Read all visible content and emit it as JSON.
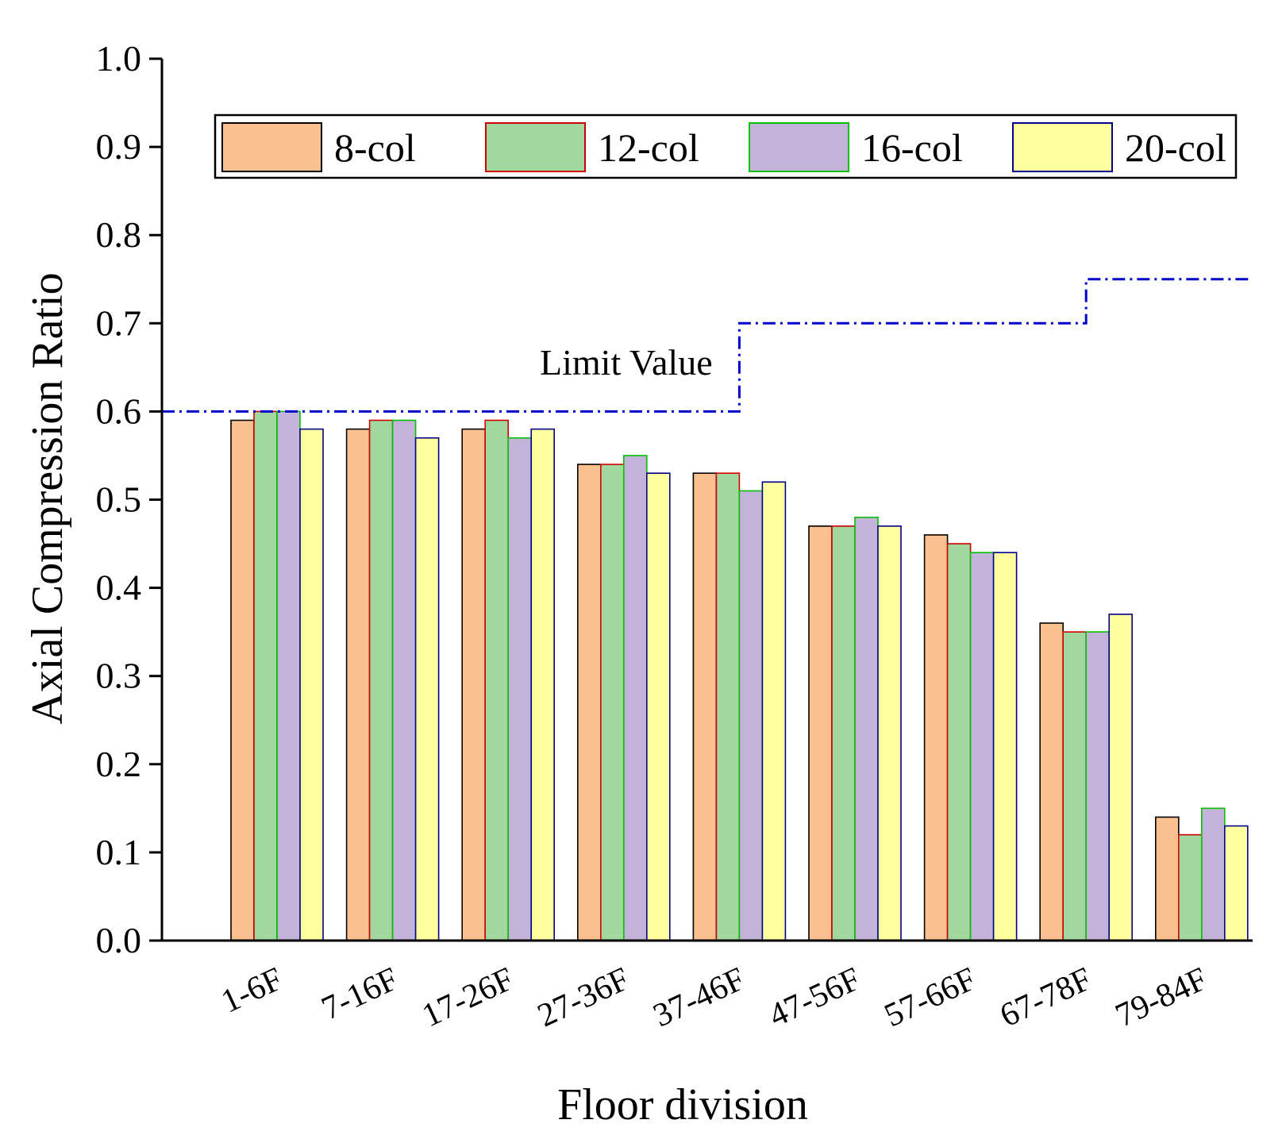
{
  "chart_data": {
    "type": "bar",
    "xlabel": "Floor division",
    "ylabel": "Axial Compression Ratio",
    "ylim": [
      0,
      1.0
    ],
    "yticks": [
      "0.0",
      "0.1",
      "0.2",
      "0.3",
      "0.4",
      "0.5",
      "0.6",
      "0.7",
      "0.8",
      "0.9",
      "1.0"
    ],
    "categories": [
      "1-6F",
      "7-16F",
      "17-26F",
      "27-36F",
      "37-46F",
      "47-56F",
      "57-66F",
      "67-78F",
      "79-84F"
    ],
    "series": [
      {
        "name": "8-col",
        "fill": "#FAC090",
        "stroke": "#000000",
        "values": [
          0.59,
          0.58,
          0.58,
          0.54,
          0.53,
          0.47,
          0.46,
          0.36,
          0.14
        ]
      },
      {
        "name": "12-col",
        "fill": "#A0D8A0",
        "stroke": "#D00000",
        "values": [
          0.6,
          0.59,
          0.59,
          0.54,
          0.53,
          0.47,
          0.45,
          0.35,
          0.12
        ]
      },
      {
        "name": "16-col",
        "fill": "#C3B3D8",
        "stroke": "#00C000",
        "values": [
          0.6,
          0.59,
          0.57,
          0.55,
          0.51,
          0.48,
          0.44,
          0.35,
          0.15
        ]
      },
      {
        "name": "20-col",
        "fill": "#FFFFA0",
        "stroke": "#00008B",
        "values": [
          0.58,
          0.57,
          0.58,
          0.53,
          0.52,
          0.47,
          0.44,
          0.37,
          0.13
        ]
      }
    ],
    "limit": {
      "label": "Limit Value",
      "color": "#0000CC",
      "steps": [
        {
          "from_category": 0,
          "to_category": 4.5,
          "value": 0.6
        },
        {
          "from_category": 4.5,
          "to_category": 7.5,
          "value": 0.7
        },
        {
          "from_category": 7.5,
          "to_category": 9,
          "value": 0.75
        }
      ]
    },
    "legend": "top"
  }
}
